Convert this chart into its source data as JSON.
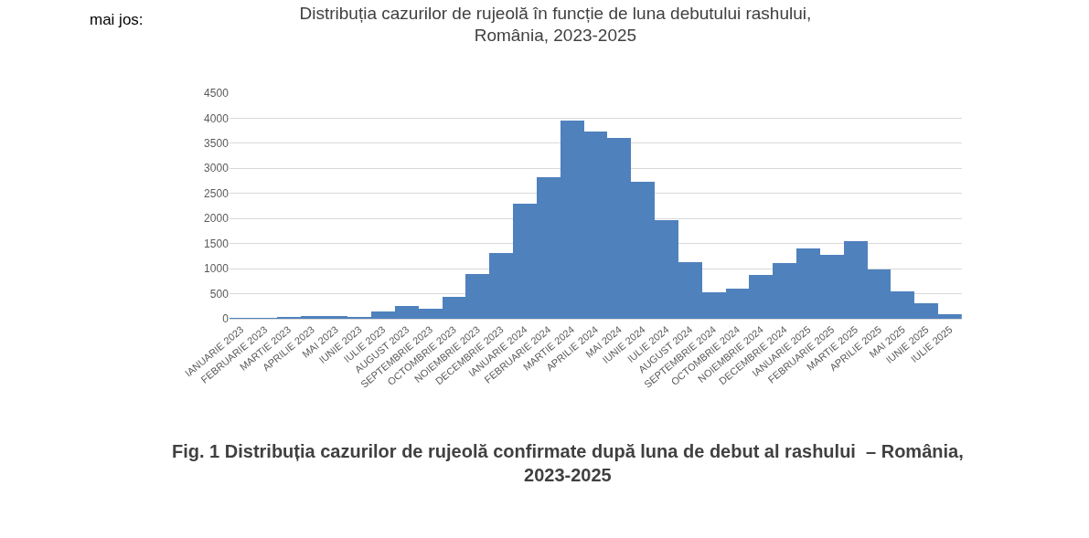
{
  "chart_data": {
    "type": "bar",
    "title": "Distribuția cazurilor de rujeolă în funcție de luna debutului rashului,\nRomânia, 2023-2025",
    "categories": [
      "IANUARIE 2023",
      "FEBRUARIE 2023",
      "MARTIE 2023",
      "APRILIE 2023",
      "MAI 2023",
      "IUNIE 2023",
      "IULIE 2023",
      "AUGUST 2023",
      "SEPTEMBRIE 2023",
      "OCTOMBRIE 2023",
      "NOIEMBRIE 2023",
      "DECEMBRIE 2023",
      "IANUARIE 2024",
      "FEBRUARIE 2024",
      "MARTIE 2024",
      "APRILIE 2024",
      "MAI 2024",
      "IUNIE 2024",
      "IULIE 2024",
      "AUGUST 2024",
      "SEPTEMBRIE 2024",
      "OCTOMBRIE 2024",
      "NOIEMBRIE 2024",
      "DECEMBRIE 2024",
      "IANUARIE 2025",
      "FEBRUARIE 2025",
      "MARTIE 2025",
      "APRILIE 2025",
      "MAI 2025",
      "IUNIE 2025",
      "IULIE 2025"
    ],
    "values": [
      10,
      10,
      50,
      65,
      65,
      50,
      155,
      260,
      210,
      450,
      905,
      1310,
      2295,
      2820,
      3960,
      3735,
      3600,
      2730,
      1970,
      1130,
      525,
      605,
      885,
      1110,
      1400,
      1275,
      1545,
      985,
      555,
      320,
      95
    ],
    "color": "#4f81bd",
    "ylim": [
      0,
      4500
    ],
    "yticks": [
      0,
      500,
      1000,
      1500,
      2000,
      2500,
      3000,
      3500,
      4000,
      4500
    ],
    "grid": "y",
    "legend": false,
    "annotations": [
      "mai jos:",
      "Fig. 1 Distribuția cazurilor de rujeolă confirmate după luna de debut al rashului  – România,\n2023-2025"
    ]
  }
}
